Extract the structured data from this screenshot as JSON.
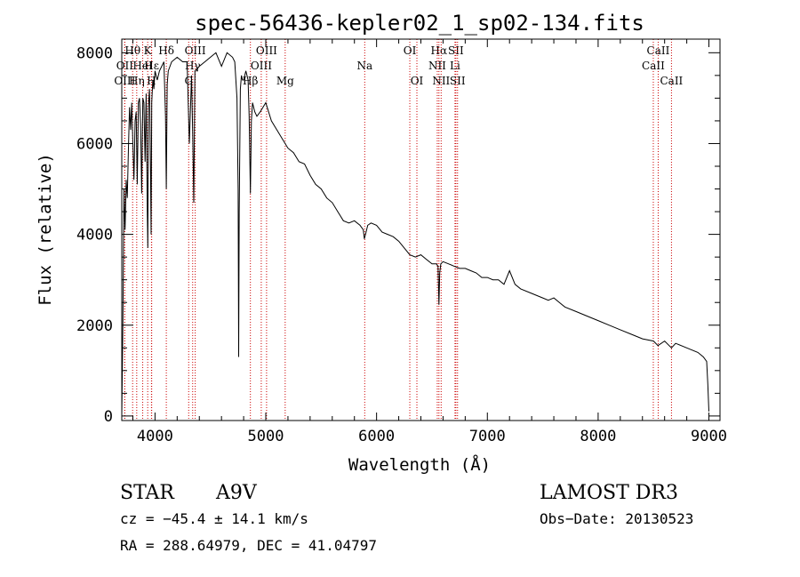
{
  "chart_data": {
    "type": "line",
    "title": "spec-56436-kepler02_1_sp02-134.fits",
    "xlabel": "Wavelength (Å)",
    "ylabel": "Flux (relative)",
    "xlim": [
      3700,
      9100
    ],
    "ylim": [
      -100,
      8300
    ],
    "x_ticks": [
      4000,
      5000,
      6000,
      7000,
      8000,
      9000
    ],
    "y_ticks": [
      0,
      2000,
      4000,
      6000,
      8000
    ],
    "line_color": "#000000",
    "marker_color": "#cc0000",
    "spectrum": {
      "x": [
        3700,
        3710,
        3720,
        3730,
        3740,
        3750,
        3760,
        3770,
        3780,
        3790,
        3800,
        3810,
        3820,
        3830,
        3840,
        3850,
        3860,
        3870,
        3880,
        3890,
        3900,
        3910,
        3920,
        3930,
        3935,
        3940,
        3950,
        3960,
        3965,
        3970,
        3980,
        3990,
        4000,
        4010,
        4020,
        4040,
        4060,
        4080,
        4095,
        4102,
        4110,
        4120,
        4150,
        4200,
        4250,
        4290,
        4310,
        4330,
        4340,
        4350,
        4360,
        4400,
        4450,
        4500,
        4550,
        4600,
        4650,
        4700,
        4720,
        4740,
        4750,
        4755,
        4760,
        4770,
        4780,
        4790,
        4800,
        4820,
        4840,
        4850,
        4861,
        4870,
        4880,
        4900,
        4920,
        4950,
        5000,
        5050,
        5100,
        5150,
        5200,
        5250,
        5300,
        5350,
        5400,
        5450,
        5500,
        5550,
        5600,
        5650,
        5700,
        5750,
        5800,
        5850,
        5880,
        5890,
        5900,
        5920,
        5950,
        6000,
        6050,
        6100,
        6150,
        6200,
        6250,
        6300,
        6350,
        6400,
        6450,
        6500,
        6540,
        6555,
        6563,
        6570,
        6580,
        6600,
        6650,
        6700,
        6750,
        6800,
        6850,
        6900,
        6950,
        7000,
        7050,
        7100,
        7150,
        7200,
        7250,
        7300,
        7400,
        7500,
        7550,
        7600,
        7650,
        7700,
        7800,
        7900,
        8000,
        8100,
        8200,
        8300,
        8400,
        8500,
        8540,
        8600,
        8662,
        8700,
        8800,
        8900,
        8950,
        8980,
        8990,
        9000
      ],
      "y": [
        0,
        2000,
        5000,
        4100,
        5200,
        4800,
        5900,
        6800,
        6300,
        6900,
        6000,
        5200,
        6500,
        6700,
        5100,
        6900,
        7000,
        6400,
        4900,
        7000,
        6900,
        5600,
        7100,
        4500,
        3700,
        6800,
        7200,
        5300,
        4000,
        6900,
        7400,
        7200,
        7600,
        7500,
        7400,
        7600,
        7700,
        7800,
        6600,
        5000,
        7300,
        7600,
        7800,
        7900,
        7800,
        7800,
        6000,
        7500,
        6200,
        4700,
        7600,
        7700,
        7800,
        7900,
        8000,
        7700,
        8000,
        7900,
        7800,
        7000,
        5000,
        1300,
        4500,
        7200,
        7500,
        7400,
        7400,
        7600,
        7400,
        6600,
        4900,
        6500,
        6900,
        6700,
        6600,
        6700,
        6900,
        6500,
        6300,
        6100,
        5900,
        5800,
        5600,
        5550,
        5300,
        5100,
        5000,
        4800,
        4700,
        4500,
        4300,
        4250,
        4300,
        4200,
        4100,
        3900,
        4000,
        4200,
        4250,
        4200,
        4050,
        4000,
        3950,
        3850,
        3700,
        3550,
        3500,
        3550,
        3450,
        3350,
        3350,
        3300,
        2450,
        3150,
        3350,
        3400,
        3350,
        3300,
        3250,
        3250,
        3200,
        3150,
        3050,
        3050,
        3000,
        3000,
        2900,
        3200,
        2900,
        2800,
        2700,
        2600,
        2550,
        2600,
        2500,
        2400,
        2300,
        2200,
        2100,
        2000,
        1900,
        1800,
        1700,
        1650,
        1550,
        1650,
        1500,
        1600,
        1500,
        1400,
        1300,
        1200,
        700,
        100
      ]
    },
    "line_markers": [
      {
        "label": "Hθ",
        "x": 3798,
        "row": 0
      },
      {
        "label": "OII",
        "x": 3727,
        "row": 1
      },
      {
        "label": "OIII",
        "x": 3727,
        "row": 2
      },
      {
        "label": "HeI",
        "x": 3889,
        "row": 1
      },
      {
        "label": "Hη",
        "x": 3835,
        "row": 2
      },
      {
        "label": "K",
        "x": 3934,
        "row": 0
      },
      {
        "label": "H",
        "x": 3968,
        "row": 2
      },
      {
        "label": "Hδ",
        "x": 4102,
        "row": 0
      },
      {
        "label": "Hε",
        "x": 3970,
        "row": 1
      },
      {
        "label": "OIII",
        "x": 4363,
        "row": 0
      },
      {
        "label": "Hγ",
        "x": 4340,
        "row": 1
      },
      {
        "label": "G",
        "x": 4304,
        "row": 2
      },
      {
        "label": "OIII",
        "x": 5007,
        "row": 0
      },
      {
        "label": "OIII",
        "x": 4959,
        "row": 1
      },
      {
        "label": "Hβ",
        "x": 4861,
        "row": 2
      },
      {
        "label": "Mg",
        "x": 5175,
        "row": 2
      },
      {
        "label": "Na",
        "x": 5893,
        "row": 1
      },
      {
        "label": "OI",
        "x": 6300,
        "row": 0
      },
      {
        "label": "OI",
        "x": 6364,
        "row": 2
      },
      {
        "label": "Hα",
        "x": 6563,
        "row": 0
      },
      {
        "label": "SII",
        "x": 6716,
        "row": 0
      },
      {
        "label": "NII",
        "x": 6548,
        "row": 1
      },
      {
        "label": "Li",
        "x": 6708,
        "row": 1
      },
      {
        "label": "NII",
        "x": 6583,
        "row": 2
      },
      {
        "label": "SII",
        "x": 6731,
        "row": 2
      },
      {
        "label": "CaII",
        "x": 8542,
        "row": 0
      },
      {
        "label": "CaII",
        "x": 8498,
        "row": 1
      },
      {
        "label": "CaII",
        "x": 8662,
        "row": 2
      }
    ]
  },
  "info": {
    "object_class": "STAR",
    "subclass": "A9V",
    "survey": "LAMOST DR3",
    "redshift": "cz = −45.4 ± 14.1 km/s",
    "obs_date": "Obs−Date: 20130523",
    "coords": "RA = 288.64979, DEC =  41.04797"
  }
}
